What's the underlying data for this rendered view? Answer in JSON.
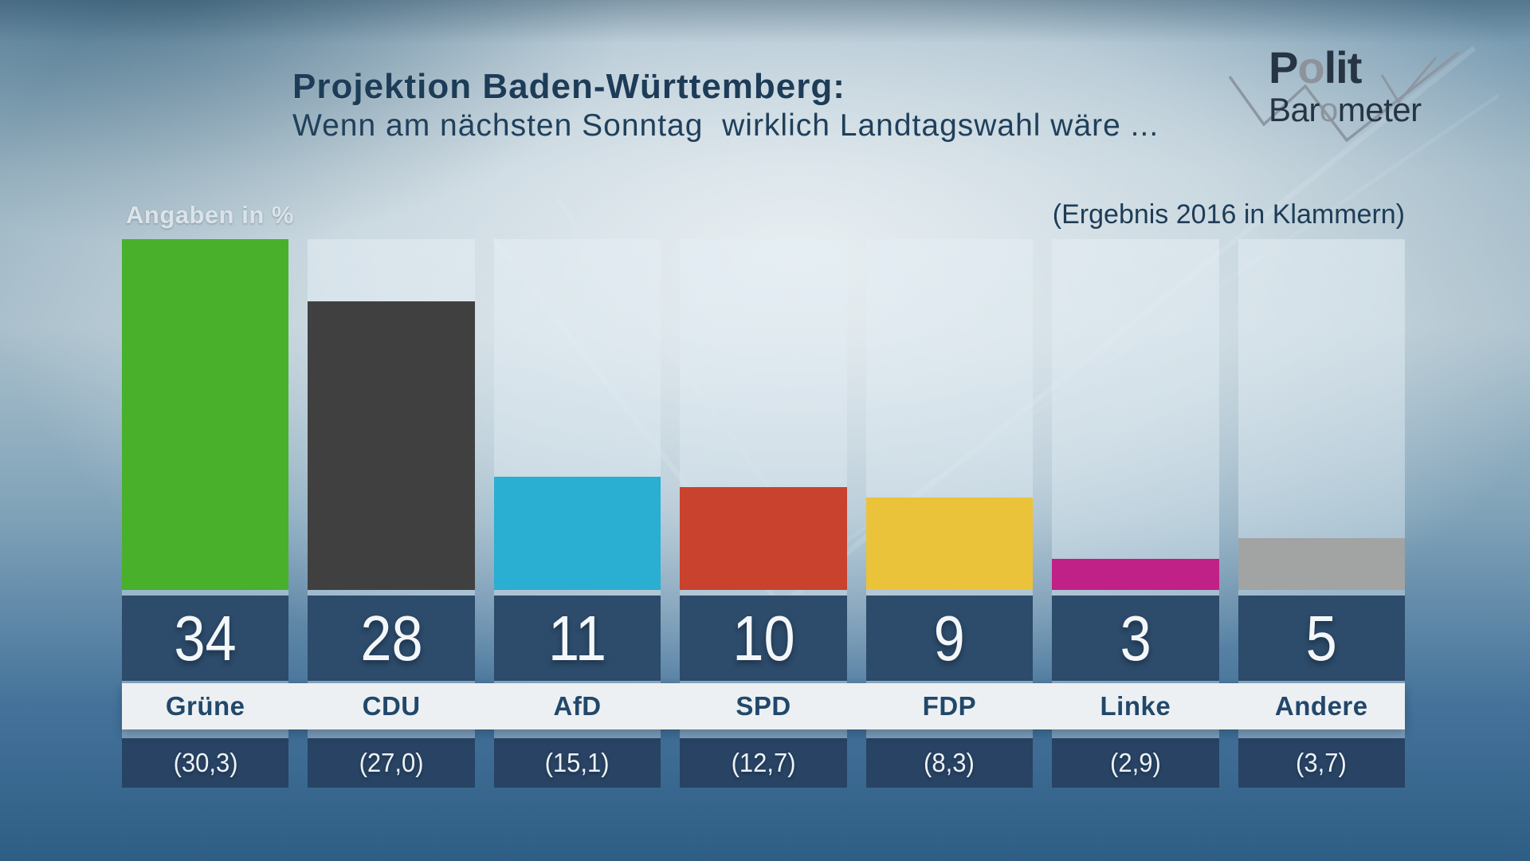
{
  "header": {
    "title_line1": "Projektion Baden-Württemberg:",
    "title_line2": "Wenn am nächsten Sonntag  wirklich Landtagswahl wäre ..."
  },
  "logo": {
    "p1": "P",
    "p2": "o",
    "p3": "lit",
    "b1": "Bar",
    "b2": "o",
    "b3": "meter"
  },
  "chart_meta": {
    "units_label": "Angaben in %",
    "note_right": "(Ergebnis 2016 in Klammern)"
  },
  "chart_data": {
    "type": "bar",
    "title": "Projektion Baden-Württemberg: Wenn am nächsten Sonntag wirklich Landtagswahl wäre ...",
    "categories": [
      "Grüne",
      "CDU",
      "AfD",
      "SPD",
      "FDP",
      "Linke",
      "Andere"
    ],
    "values": [
      34,
      28,
      11,
      10,
      9,
      3,
      5
    ],
    "labels_2016": [
      "(30,3)",
      "(27,0)",
      "(15,1)",
      "(12,7)",
      "(8,3)",
      "(2,9)",
      "(3,7)"
    ],
    "values_2016": [
      30.3,
      27.0,
      15.1,
      12.7,
      8.3,
      2.9,
      3.7
    ],
    "bar_colors": [
      "#48b02b",
      "#404040",
      "#2aaed2",
      "#c9422d",
      "#eac33b",
      "#c02186",
      "#a2a3a3"
    ],
    "unit": "%",
    "ylim": [
      0,
      34
    ],
    "grid": false,
    "legend": "none"
  }
}
